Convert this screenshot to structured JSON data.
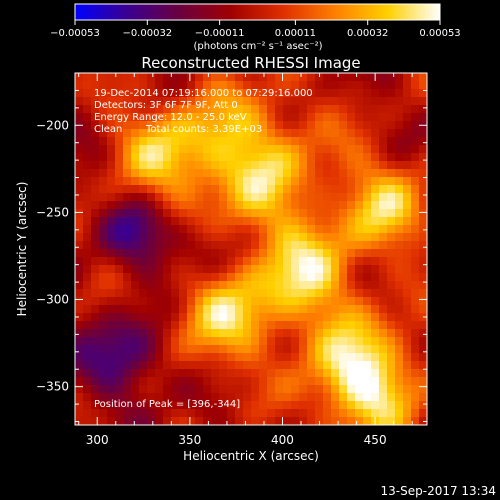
{
  "chart_data": {
    "type": "heatmap",
    "title": "Reconstructed RHESSI Image",
    "xlabel": "Heliocentric X (arcsec)",
    "ylabel": "Heliocentric Y (arcsec)",
    "xlim": [
      288,
      478
    ],
    "ylim": [
      -372,
      -170
    ],
    "x_ticks": [
      300,
      350,
      400,
      450
    ],
    "y_ticks": [
      -200,
      -250,
      -300,
      -350
    ],
    "x_tick_labels": [
      "300",
      "350",
      "400",
      "450"
    ],
    "y_tick_labels": [
      "−200",
      "−250",
      "−300",
      "−350"
    ],
    "annotations": {
      "time": "19-Dec-2014 07:19:16.000 to 07:29:16.000",
      "detectors": "Detectors: 3F 6F 7F 9F, Att 0",
      "energy": "Energy Range: 12.0 - 25.0 keV",
      "method": "Clean",
      "counts": "Total counts: 3.39E+03",
      "peak": "Position of Peak = [396,-344]"
    },
    "peak_position": [
      396,
      -344
    ],
    "colorbar": {
      "min": -0.00053,
      "max": 0.00053,
      "tick_values": [
        -0.00053,
        -0.00032,
        -0.00011,
        0.00011,
        0.00032,
        0.00053
      ],
      "tick_labels": [
        "−0.00053",
        "−0.00032",
        "−0.00011",
        "0.00011",
        "0.00032",
        "0.00053"
      ],
      "unit_label": "(photons cm⁻² s⁻¹ asec⁻²)",
      "colormap": [
        "#0000ff",
        "#3a0090",
        "#6a0040",
        "#a00000",
        "#e03000",
        "#ff8000",
        "#ffd000",
        "#ffffff"
      ]
    },
    "grid": false
  },
  "footer_date": "13-Sep-2017 13:34"
}
